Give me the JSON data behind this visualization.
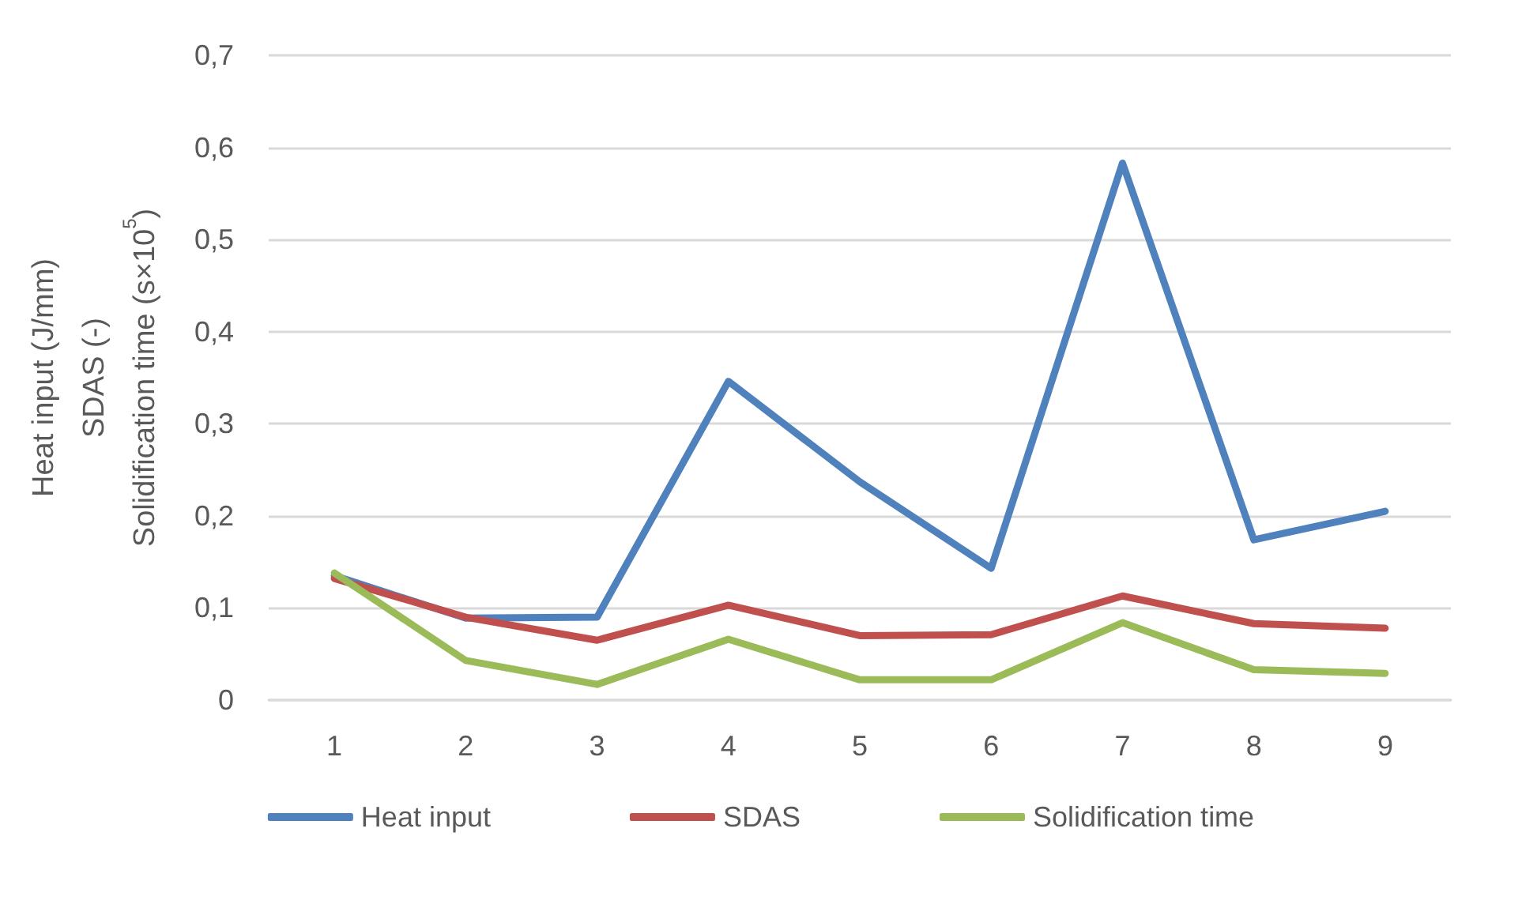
{
  "chart_data": {
    "type": "line",
    "ylabel": "Heat input (J/mm)\nSDAS (-)\nSolidification time (s×10$^{5}$)",
    "categories": [
      "1",
      "2",
      "3",
      "4",
      "5",
      "6",
      "7",
      "8",
      "9"
    ],
    "series": [
      {
        "name": "Heat input",
        "color": "#4f81bd",
        "values": [
          0.135,
          0.089,
          0.09,
          0.346,
          0.237,
          0.143,
          0.583,
          0.174,
          0.205
        ]
      },
      {
        "name": "SDAS",
        "color": "#c0504d",
        "values": [
          0.132,
          0.09,
          0.065,
          0.103,
          0.07,
          0.071,
          0.113,
          0.083,
          0.078
        ]
      },
      {
        "name": "Solidification time",
        "color": "#9bbb59",
        "values": [
          0.138,
          0.043,
          0.017,
          0.066,
          0.022,
          0.022,
          0.084,
          0.033,
          0.029
        ]
      }
    ],
    "ylim": [
      0,
      0.7
    ],
    "yticks": [
      0,
      {
        "value": 0.1,
        "label": "0,1"
      },
      {
        "value": 0.2,
        "label": "0,2"
      },
      {
        "value": 0.3,
        "label": "0,3"
      },
      {
        "value": 0.4,
        "label": "0,4"
      },
      {
        "value": 0.5,
        "label": "0,5"
      },
      {
        "value": 0.6,
        "label": "0,6"
      },
      {
        "value": 0.7,
        "label": "0,7"
      }
    ],
    "grid": "y",
    "legend": "bottom",
    "marker": "none"
  }
}
